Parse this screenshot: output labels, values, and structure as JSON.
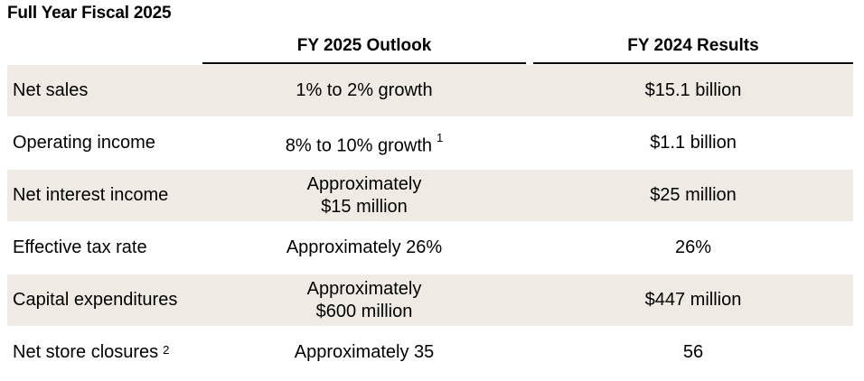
{
  "title": "Full Year Fiscal 2025",
  "columns": {
    "outlook": "FY 2025 Outlook",
    "results": "FY 2024 Results"
  },
  "rows": [
    {
      "label": "Net sales",
      "label_note": "",
      "outlook": [
        "1% to 2% growth"
      ],
      "outlook_note": "",
      "results": "$15.1 billion",
      "shaded": true
    },
    {
      "label": "Operating income",
      "label_note": "",
      "outlook": [
        "8% to 10% growth"
      ],
      "outlook_note": "1",
      "results": "$1.1 billion",
      "shaded": false
    },
    {
      "label": "Net interest income",
      "label_note": "",
      "outlook": [
        "Approximately",
        "$15 million"
      ],
      "outlook_note": "",
      "results": "$25 million",
      "shaded": true
    },
    {
      "label": "Effective tax rate",
      "label_note": "",
      "outlook": [
        "Approximately 26%"
      ],
      "outlook_note": "",
      "results": "26%",
      "shaded": false
    },
    {
      "label": "Capital expenditures",
      "label_note": "",
      "outlook": [
        "Approximately",
        "$600 million"
      ],
      "outlook_note": "",
      "results": "$447 million",
      "shaded": true
    },
    {
      "label": "Net store closures",
      "label_note": "2",
      "outlook": [
        "Approximately 35"
      ],
      "outlook_note": "",
      "results": "56",
      "shaded": false
    }
  ]
}
